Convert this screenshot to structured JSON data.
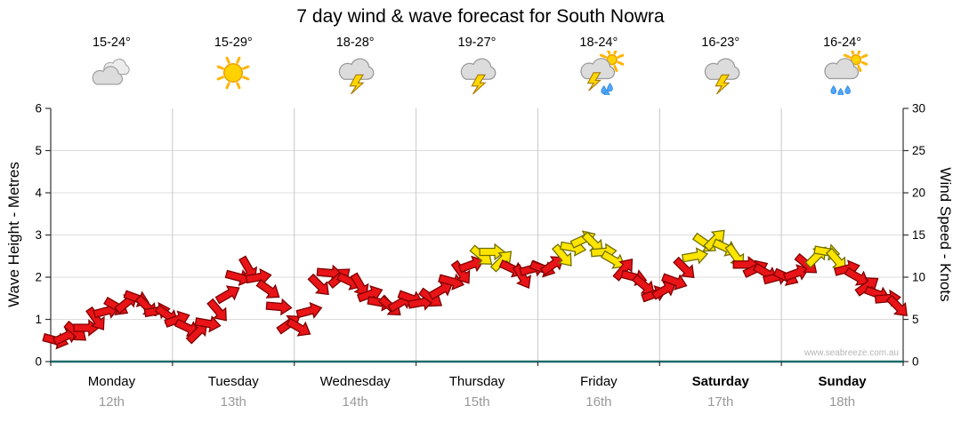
{
  "title": "7 day wind & wave forecast for South Nowra",
  "watermark": "www.seabreeze.com.au",
  "left_axis": {
    "label": "Wave Height - Metres",
    "ticks": [
      0,
      1,
      2,
      3,
      4,
      5,
      6
    ]
  },
  "right_axis": {
    "label": "Wind Speed - Knots",
    "ticks": [
      0,
      5,
      10,
      15,
      20,
      25,
      30
    ]
  },
  "days": [
    {
      "name": "Monday",
      "date": "12th",
      "temp": "15-24°",
      "bold": false,
      "icon": "cloudy"
    },
    {
      "name": "Tuesday",
      "date": "13th",
      "temp": "15-29°",
      "bold": false,
      "icon": "sunny"
    },
    {
      "name": "Wednesday",
      "date": "14th",
      "temp": "18-28°",
      "bold": false,
      "icon": "storm"
    },
    {
      "name": "Thursday",
      "date": "15th",
      "temp": "19-27°",
      "bold": false,
      "icon": "storm"
    },
    {
      "name": "Friday",
      "date": "16th",
      "temp": "18-24°",
      "bold": false,
      "icon": "sun-storm-rain"
    },
    {
      "name": "Saturday",
      "date": "17th",
      "temp": "16-23°",
      "bold": true,
      "icon": "storm"
    },
    {
      "name": "Sunday",
      "date": "18th",
      "temp": "16-24°",
      "bold": true,
      "icon": "sun-rain"
    }
  ],
  "chart_data": {
    "type": "scatter",
    "description": "Wind arrows plotted against dual axes: wave height (m, left) and wind speed (knots, right); 12 points per day",
    "categories": [
      "Monday 12th",
      "Tuesday 13th",
      "Wednesday 14th",
      "Thursday 15th",
      "Friday 16th",
      "Saturday 17th",
      "Sunday 18th"
    ],
    "ylim_metres": [
      0,
      6
    ],
    "ylim_knots": [
      0,
      30
    ],
    "yellow_threshold_knots": 12,
    "series": [
      {
        "name": "Wind speed & direction",
        "points_per_day": 12,
        "knots": [
          [
            2.5,
            3,
            3.5,
            4,
            5,
            6,
            6.5,
            7,
            7.5,
            6.5,
            6,
            5.5
          ],
          [
            5,
            4,
            3.5,
            4.5,
            6,
            8,
            10,
            11,
            10,
            8.5,
            6.5,
            4.5
          ],
          [
            4,
            6,
            9,
            10.5,
            10,
            9.5,
            9,
            8,
            7,
            6.5,
            7,
            7.5
          ],
          [
            7,
            7.5,
            8.5,
            9.5,
            10.5,
            11.5,
            12.5,
            13,
            12,
            11,
            10,
            11
          ],
          [
            11,
            11.5,
            12.5,
            13.5,
            14.5,
            14,
            13,
            12,
            11,
            10,
            9,
            8
          ],
          [
            8.5,
            9.5,
            11,
            12.5,
            14,
            14.5,
            13.5,
            12.5,
            11.5,
            11,
            10.5,
            10
          ],
          [
            10,
            10.5,
            11.5,
            12.5,
            13,
            12,
            11,
            10,
            9,
            8,
            7.5,
            6.5
          ]
        ],
        "direction_deg": [
          [
            15,
            -25,
            40,
            0,
            55,
            -15,
            30,
            -40,
            20,
            45,
            -10,
            35
          ],
          [
            -20,
            25,
            -45,
            10,
            50,
            -30,
            15,
            60,
            -10,
            35,
            5,
            -35
          ],
          [
            30,
            -15,
            45,
            5,
            -40,
            25,
            60,
            -20,
            10,
            40,
            -30,
            20
          ],
          [
            -10,
            35,
            -30,
            15,
            55,
            -20,
            40,
            0,
            -45,
            25,
            60,
            -15
          ],
          [
            20,
            -35,
            50,
            10,
            -25,
            45,
            -5,
            30,
            -50,
            15,
            40,
            -20
          ],
          [
            -30,
            20,
            45,
            -10,
            35,
            -45,
            25,
            55,
            0,
            -25,
            30,
            -15
          ],
          [
            25,
            -20,
            40,
            -45,
            10,
            50,
            -15,
            30,
            -35,
            20,
            -5,
            45
          ]
        ]
      }
    ]
  },
  "colors": {
    "arrow_red": "#e81417",
    "arrow_red_outline": "#7f0000",
    "arrow_yellow": "#ffe400",
    "arrow_yellow_outline": "#6f6f00",
    "grid": "#dcdcdc",
    "grid_day": "#c8c8c8",
    "axis": "#333333",
    "bottom_axis": "#1f6b6b",
    "date_text": "#999999",
    "watermark": "#b5b5b5"
  }
}
